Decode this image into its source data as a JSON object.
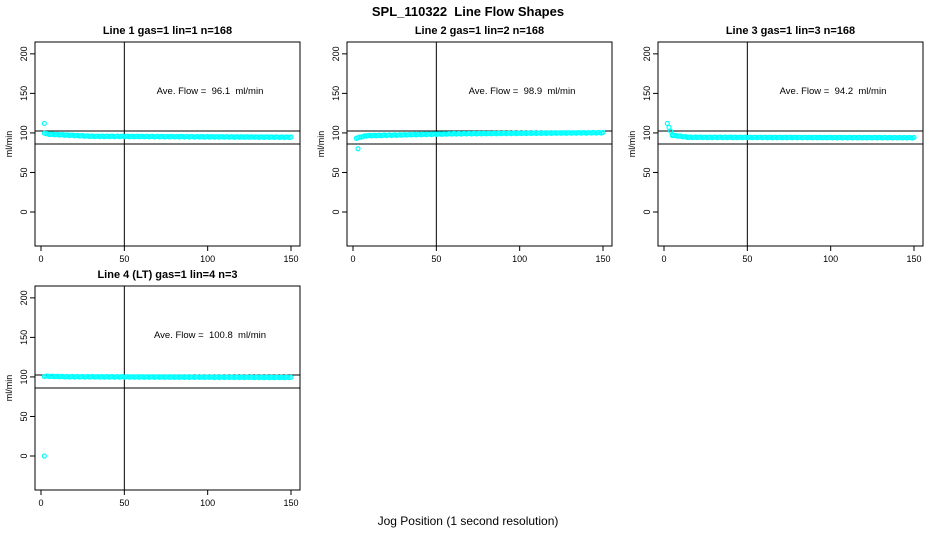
{
  "page": {
    "title": "SPL_110322  Line Flow Shapes",
    "xlabel": "Jog Position (1 second resolution)"
  },
  "colors": {
    "point": "#00ffff",
    "axis": "#000000",
    "background": "#ffffff"
  },
  "chart_data": [
    {
      "type": "scatter",
      "title": "Line 1 gas=1 lin=1 n=168",
      "annotation": "Ave. Flow =  96.1  ml/min",
      "ave_flow_ml_min": 96.1,
      "gas": 1,
      "lin": 1,
      "n": 168,
      "ylabel": "ml/min",
      "marker": "open-circle",
      "x_ticks": [
        0,
        50,
        100,
        150
      ],
      "y_ticks": [
        0,
        50,
        100,
        150,
        200
      ],
      "xlim": [
        -3.6,
        155.4
      ],
      "ylim": [
        -43,
        215
      ],
      "hlines": [
        102.5,
        86
      ],
      "vlines": [
        50
      ],
      "series_segments": [
        {
          "x1": 2,
          "x2": 4,
          "y1": 100,
          "y2": 98.5
        },
        {
          "x1": 4,
          "x2": 30,
          "y1": 98.5,
          "y2": 95.8
        },
        {
          "x1": 30,
          "x2": 150,
          "y1": 95.8,
          "y2": 94.6
        }
      ],
      "outliers": [
        {
          "x": 2,
          "y": 112
        }
      ]
    },
    {
      "type": "scatter",
      "title": "Line 2 gas=1 lin=2 n=168",
      "annotation": "Ave. Flow =  98.9  ml/min",
      "ave_flow_ml_min": 98.9,
      "gas": 1,
      "lin": 2,
      "n": 168,
      "ylabel": "ml/min",
      "marker": "open-circle",
      "x_ticks": [
        0,
        50,
        100,
        150
      ],
      "y_ticks": [
        0,
        50,
        100,
        150,
        200
      ],
      "xlim": [
        -3.6,
        155.4
      ],
      "ylim": [
        -43,
        215
      ],
      "hlines": [
        102.5,
        86
      ],
      "vlines": [
        50
      ],
      "series_segments": [
        {
          "x1": 2,
          "x2": 8,
          "y1": 93.5,
          "y2": 96.5
        },
        {
          "x1": 8,
          "x2": 60,
          "y1": 96.5,
          "y2": 99
        },
        {
          "x1": 60,
          "x2": 150,
          "y1": 99,
          "y2": 100.3
        }
      ],
      "outliers": [
        {
          "x": 3,
          "y": 80
        }
      ]
    },
    {
      "type": "scatter",
      "title": "Line 3 gas=1 lin=3 n=168",
      "annotation": "Ave. Flow =  94.2  ml/min",
      "ave_flow_ml_min": 94.2,
      "gas": 1,
      "lin": 3,
      "n": 168,
      "ylabel": "ml/min",
      "marker": "open-circle",
      "x_ticks": [
        0,
        50,
        100,
        150
      ],
      "y_ticks": [
        0,
        50,
        100,
        150,
        200
      ],
      "xlim": [
        -3.6,
        155.4
      ],
      "ylim": [
        -43,
        215
      ],
      "hlines": [
        102.5,
        86
      ],
      "vlines": [
        50
      ],
      "series_segments": [
        {
          "x1": 5,
          "x2": 15,
          "y1": 97,
          "y2": 94.5
        },
        {
          "x1": 15,
          "x2": 150,
          "y1": 94.5,
          "y2": 94
        }
      ],
      "outliers": [
        {
          "x": 2,
          "y": 112
        },
        {
          "x": 3,
          "y": 107
        },
        {
          "x": 4,
          "y": 102
        },
        {
          "x": 5,
          "y": 98
        }
      ]
    },
    {
      "type": "scatter",
      "title": "Line 4 (LT) gas=1 lin=4 n=3",
      "annotation": "Ave. Flow =  100.8  ml/min",
      "ave_flow_ml_min": 100.8,
      "gas": 1,
      "lin": 4,
      "n": 3,
      "ylabel": "ml/min",
      "marker": "open-circle",
      "x_ticks": [
        0,
        50,
        100,
        150
      ],
      "y_ticks": [
        0,
        50,
        100,
        150,
        200
      ],
      "xlim": [
        -3.6,
        155.4
      ],
      "ylim": [
        -43,
        215
      ],
      "hlines": [
        102.5,
        86
      ],
      "vlines": [
        50
      ],
      "series_segments": [
        {
          "x1": 2,
          "x2": 15,
          "y1": 101,
          "y2": 100.3
        },
        {
          "x1": 15,
          "x2": 150,
          "y1": 100.3,
          "y2": 99.4
        }
      ],
      "outliers": [
        {
          "x": 2,
          "y": 0
        }
      ]
    }
  ]
}
